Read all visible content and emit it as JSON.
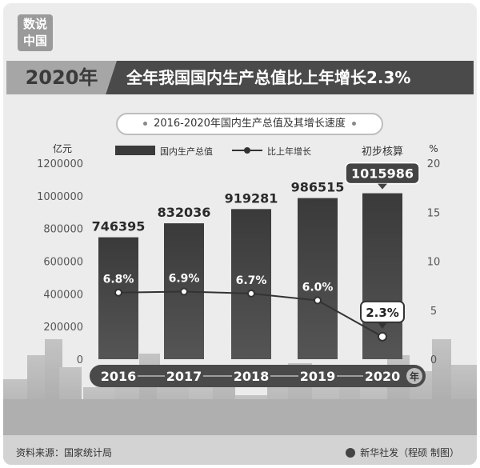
{
  "badge": {
    "line1": "数说",
    "line2": "中国"
  },
  "header": {
    "year": "2020年",
    "headline": "全年我国国内生产总值比上年增长2.3%"
  },
  "subtitle": "2016-2020年国内生产总值及其增长速度",
  "chart_data": {
    "type": "bar",
    "categories": [
      "2016",
      "2017",
      "2018",
      "2019",
      "2020"
    ],
    "x_unit": "年",
    "series": [
      {
        "name": "国内生产总值",
        "kind": "bar",
        "axis": "left",
        "values": [
          746395,
          832036,
          919281,
          986515,
          1015986
        ]
      },
      {
        "name": "比上年增长",
        "kind": "line",
        "axis": "right",
        "values": [
          6.8,
          6.9,
          6.7,
          6.0,
          2.3
        ]
      }
    ],
    "data_labels_bar": [
      "746395",
      "832036",
      "919281",
      "986515",
      "1015986"
    ],
    "data_labels_line": [
      "6.8%",
      "6.9%",
      "6.7%",
      "6.0%",
      "2.3%"
    ],
    "annotation": "初步核算",
    "y_left": {
      "unit": "亿元",
      "ticks": [
        "0",
        "200000",
        "400000",
        "600000",
        "800000",
        "1000000",
        "1200000"
      ],
      "range": [
        0,
        1200000
      ]
    },
    "y_right": {
      "unit": "%",
      "ticks": [
        "0",
        "5",
        "10",
        "15",
        "20"
      ],
      "range": [
        0,
        20
      ]
    },
    "legend_position": "top",
    "colors": {
      "bar": "#3a3a3a",
      "line": "#333333",
      "highlight": "#444444"
    }
  },
  "footer": {
    "source": "资料来源：国家统计局",
    "credit": "新华社发（程硕 制图）"
  }
}
